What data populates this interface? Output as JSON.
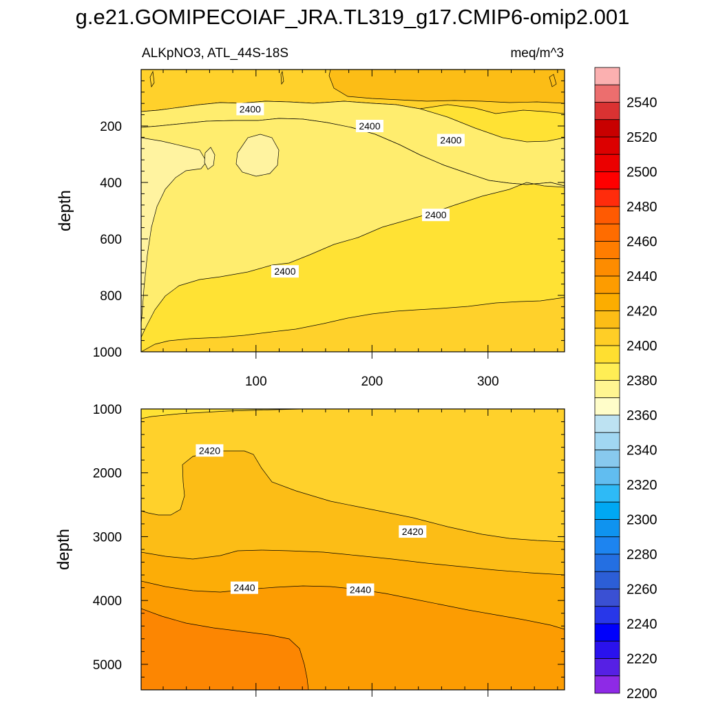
{
  "title": "g.e21.GOMIPECOIAF_JRA.TL319_g17.CMIP6-omip2.001",
  "variable_label": "ALKpNO3, ATL_44S-18S",
  "units_label": "meq/m^3",
  "colors": {
    "band_2380_2390": "#fff3a0",
    "band_2390_2400": "#ffed6e",
    "band_2400_2410": "#ffe234",
    "band_2410_2420": "#ffd12b",
    "band_2420_2430": "#fcbd16",
    "band_2430_2440": "#fcad07",
    "band_2440_2450": "#fc9c02",
    "band_2450_2460": "#fc8602"
  },
  "chart_data": [
    {
      "type": "contour",
      "panel": "upper",
      "xlabel": "",
      "ylabel": "depth",
      "xlim": [
        1,
        366
      ],
      "ylim": [
        1000,
        0
      ],
      "xticks": [
        100,
        200,
        300
      ],
      "yticks": [
        200,
        400,
        600,
        800,
        1000
      ],
      "contour_labels": [
        {
          "text": "2400",
          "x": 95,
          "y": 140
        },
        {
          "text": "2400",
          "x": 198,
          "y": 200
        },
        {
          "text": "2400",
          "x": 268,
          "y": 250
        },
        {
          "text": "2400",
          "x": 255,
          "y": 515
        },
        {
          "text": "2400",
          "x": 125,
          "y": 715
        }
      ]
    },
    {
      "type": "contour",
      "panel": "lower",
      "xlabel": "",
      "ylabel": "depth",
      "xlim": [
        1,
        366
      ],
      "ylim": [
        5400,
        1000
      ],
      "yticks": [
        1000,
        2000,
        3000,
        4000,
        5000
      ],
      "contour_labels": [
        {
          "text": "2420",
          "x": 60,
          "y": 1650
        },
        {
          "text": "2420",
          "x": 235,
          "y": 2920
        },
        {
          "text": "2440",
          "x": 90,
          "y": 3800
        },
        {
          "text": "2440",
          "x": 190,
          "y": 3830
        }
      ]
    }
  ],
  "colorbar": {
    "labels": [
      "2540",
      "2520",
      "2500",
      "2480",
      "2460",
      "2440",
      "2420",
      "2400",
      "2380",
      "2360",
      "2340",
      "2320",
      "2300",
      "2280",
      "2260",
      "2240",
      "2220",
      "2200"
    ],
    "colors": [
      "#fbb0b0",
      "#ec6e6e",
      "#da3232",
      "#c80000",
      "#dc0000",
      "#eb0000",
      "#ff0000",
      "#ff2c0c",
      "#ff5a02",
      "#ff6c00",
      "#ff7d00",
      "#fd8c00",
      "#fd9c00",
      "#fcad00",
      "#fcbd16",
      "#ffce26",
      "#ffdf30",
      "#ffee55",
      "#fff591",
      "#fffdc9",
      "#bde2f2",
      "#a1d7f2",
      "#88c9ee",
      "#61bdf0",
      "#2ebaf6",
      "#00a8f3",
      "#0f93ef",
      "#1d84f0",
      "#246fe2",
      "#2c5ed6",
      "#3a50d3",
      "#2837e9",
      "#0000fb",
      "#2a12ed",
      "#5620e4",
      "#8e2ae6"
    ]
  }
}
